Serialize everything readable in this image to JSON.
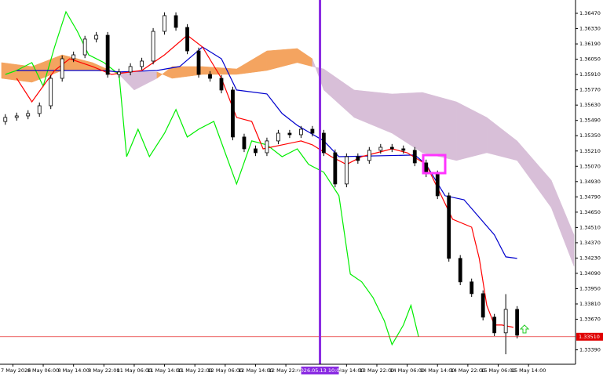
{
  "chart_data": {
    "type": "candlestick",
    "xlim": [
      -3.4,
      148.4
    ],
    "ylim": [
      1.33258,
      1.36592
    ],
    "yticks": [
      {
        "value": 1.3647,
        "label": "1.36470"
      },
      {
        "value": 1.3633,
        "label": "1.36330"
      },
      {
        "value": 1.3619,
        "label": "1.36190"
      },
      {
        "value": 1.3605,
        "label": "1.36050"
      },
      {
        "value": 1.3591,
        "label": "1.35910"
      },
      {
        "value": 1.3577,
        "label": "1.35770"
      },
      {
        "value": 1.3563,
        "label": "1.35630"
      },
      {
        "value": 1.3549,
        "label": "1.35490"
      },
      {
        "value": 1.3535,
        "label": "1.35350"
      },
      {
        "value": 1.3521,
        "label": "1.35210"
      },
      {
        "value": 1.3507,
        "label": "1.35070"
      },
      {
        "value": 1.3493,
        "label": "1.34930"
      },
      {
        "value": 1.3479,
        "label": "1.34790"
      },
      {
        "value": 1.3465,
        "label": "1.34650"
      },
      {
        "value": 1.3451,
        "label": "1.34510"
      },
      {
        "value": 1.3437,
        "label": "1.34370"
      },
      {
        "value": 1.3423,
        "label": "1.34230"
      },
      {
        "value": 1.3409,
        "label": "1.34090"
      },
      {
        "value": 1.3395,
        "label": "1.33950"
      },
      {
        "value": 1.3381,
        "label": "1.33810"
      },
      {
        "value": 1.3367,
        "label": "1.33670"
      },
      {
        "value": 1.3339,
        "label": "1.33390"
      }
    ],
    "xticks": [
      {
        "value": 0,
        "label": "7 May 2026"
      },
      {
        "value": 8,
        "label": "8 May 06:00"
      },
      {
        "value": 16,
        "label": "8 May 14:00"
      },
      {
        "value": 24,
        "label": "8 May 22:00"
      },
      {
        "value": 32,
        "label": "11 May 06:00"
      },
      {
        "value": 40,
        "label": "11 May 14:00"
      },
      {
        "value": 48,
        "label": "11 May 22:00"
      },
      {
        "value": 56,
        "label": "12 May 06:00"
      },
      {
        "value": 64,
        "label": "12 May 14:00"
      },
      {
        "value": 72,
        "label": "12 May 22:00"
      },
      {
        "value": 88,
        "label": "13 May 14:00"
      },
      {
        "value": 96,
        "label": "13 May 22:00"
      },
      {
        "value": 104,
        "label": "14 May 06:00"
      },
      {
        "value": 112,
        "label": "14 May 14:00"
      },
      {
        "value": 120,
        "label": "14 May 22:00"
      },
      {
        "value": 128,
        "label": "15 May 06:00"
      },
      {
        "value": 136,
        "label": "15 May 14:00"
      }
    ],
    "cursor": {
      "x": 81,
      "label": "2026.05.13 10:00",
      "color": "#8a2be2"
    },
    "price_line": {
      "value": 1.3351,
      "label": "1.33510",
      "color": "#e00000"
    },
    "candles": {
      "up_color": "#ffffff",
      "down_color": "#000000",
      "x": [
        -2,
        1,
        4,
        7,
        10,
        13,
        16,
        19,
        22,
        25,
        28,
        31,
        34,
        37,
        40,
        43,
        46,
        49,
        52,
        55,
        58,
        61,
        64,
        67,
        70,
        73,
        76,
        79,
        82,
        85,
        88,
        91,
        94,
        97,
        100,
        103,
        106,
        109,
        112,
        115,
        118,
        121,
        124,
        127,
        130,
        133
      ],
      "open": [
        1.3548,
        1.35517,
        1.35531,
        1.35553,
        1.35624,
        1.35875,
        1.36054,
        1.3609,
        1.36234,
        1.36269,
        1.35911,
        1.35933,
        1.35983,
        1.36033,
        1.36305,
        1.36449,
        1.36341,
        1.36126,
        1.35911,
        1.35875,
        1.35768,
        1.35338,
        1.3523,
        1.35194,
        1.35302,
        1.35373,
        1.35359,
        1.35409,
        1.35373,
        1.35194,
        1.34908,
        1.35158,
        1.35123,
        1.35216,
        1.35244,
        1.3523,
        1.35216,
        1.35101,
        1.35001,
        1.348,
        1.34227,
        1.34012,
        1.33904,
        1.33689,
        1.33546,
        1.3376
      ],
      "high": [
        1.35547,
        1.35561,
        1.35583,
        1.35654,
        1.35905,
        1.36084,
        1.3612,
        1.36264,
        1.36299,
        1.36299,
        1.35963,
        1.36013,
        1.36063,
        1.36335,
        1.36479,
        1.36479,
        1.36371,
        1.36156,
        1.35941,
        1.35905,
        1.35798,
        1.35368,
        1.3526,
        1.35332,
        1.35403,
        1.35403,
        1.35439,
        1.35439,
        1.35403,
        1.35224,
        1.35188,
        1.35188,
        1.35246,
        1.35274,
        1.35274,
        1.3526,
        1.35246,
        1.35131,
        1.35031,
        1.3483,
        1.34257,
        1.34042,
        1.33934,
        1.33719,
        1.339,
        1.3379
      ],
      "low": [
        1.3545,
        1.35487,
        1.35501,
        1.35523,
        1.35594,
        1.35845,
        1.36024,
        1.3606,
        1.36204,
        1.35881,
        1.35881,
        1.35903,
        1.35953,
        1.36003,
        1.36275,
        1.36311,
        1.36096,
        1.35881,
        1.35845,
        1.35738,
        1.35308,
        1.352,
        1.35164,
        1.35164,
        1.35272,
        1.35329,
        1.35329,
        1.35343,
        1.35164,
        1.34878,
        1.34878,
        1.35093,
        1.35093,
        1.35186,
        1.352,
        1.35186,
        1.35071,
        1.34971,
        1.3477,
        1.34197,
        1.33982,
        1.33874,
        1.33659,
        1.33516,
        1.3335,
        1.33494
      ],
      "close": [
        1.35517,
        1.35531,
        1.35553,
        1.35624,
        1.35875,
        1.36054,
        1.3609,
        1.36234,
        1.36269,
        1.35911,
        1.35933,
        1.35983,
        1.36033,
        1.36305,
        1.36449,
        1.36341,
        1.36126,
        1.35911,
        1.35875,
        1.35768,
        1.35338,
        1.3523,
        1.35194,
        1.35302,
        1.35373,
        1.35359,
        1.35409,
        1.35373,
        1.35194,
        1.34908,
        1.35158,
        1.35123,
        1.35216,
        1.35244,
        1.3523,
        1.35216,
        1.35101,
        1.35001,
        1.348,
        1.34227,
        1.34012,
        1.33904,
        1.33689,
        1.33546,
        1.3376,
        1.33524
      ]
    },
    "cloud": {
      "up_color": "#f4a460",
      "down_color": "#d8bfd8",
      "x": [
        -3,
        5,
        13,
        21,
        28,
        32,
        38,
        42,
        50,
        59,
        67,
        75,
        79,
        82,
        90,
        100,
        108,
        117,
        125,
        133,
        142,
        148
      ],
      "span_a": [
        1.36019,
        1.35983,
        1.3609,
        1.36019,
        1.35911,
        1.35768,
        1.35875,
        1.35983,
        1.35983,
        1.35961,
        1.36126,
        1.36148,
        1.36054,
        1.35768,
        1.35517,
        1.35373,
        1.35194,
        1.35123,
        1.35194,
        1.35123,
        1.34692,
        1.34155
      ],
      "span_b": [
        1.35875,
        1.35839,
        1.35947,
        1.35947,
        1.35933,
        1.35933,
        1.35933,
        1.35875,
        1.35911,
        1.35911,
        1.35947,
        1.36019,
        1.35983,
        1.35961,
        1.35768,
        1.35732,
        1.35746,
        1.3566,
        1.35517,
        1.35302,
        1.34943,
        1.34442
      ]
    },
    "series": [
      {
        "color": "#00ee00",
        "x": [
          -2,
          1,
          5,
          8,
          11,
          14,
          17,
          20,
          24,
          28,
          30,
          33,
          36,
          40,
          43,
          46,
          49,
          53,
          56,
          59,
          63,
          67,
          71,
          75,
          78,
          82,
          86,
          89,
          92,
          95,
          98,
          100,
          103,
          105,
          107
        ],
        "values": [
          1.35911,
          1.35947,
          1.36019,
          1.35804,
          1.36162,
          1.36484,
          1.36305,
          1.3609,
          1.36019,
          1.35911,
          1.35158,
          1.35409,
          1.35158,
          1.35373,
          1.35589,
          1.35338,
          1.35409,
          1.35481,
          1.35194,
          1.34908,
          1.35302,
          1.35266,
          1.35158,
          1.3523,
          1.35087,
          1.35015,
          1.348,
          1.34083,
          1.34012,
          1.33868,
          1.33653,
          1.33438,
          1.33617,
          1.33797,
          1.3351
        ]
      },
      {
        "color": "#0000cd",
        "x": [
          1,
          24,
          28,
          38,
          44,
          50,
          55,
          59,
          67,
          71,
          75,
          82,
          86,
          106,
          109,
          114,
          119,
          127,
          130,
          133
        ],
        "values": [
          1.35947,
          1.35947,
          1.35933,
          1.35947,
          1.35983,
          1.36162,
          1.36054,
          1.35768,
          1.35732,
          1.35553,
          1.35445,
          1.35302,
          1.35158,
          1.35173,
          1.35087,
          1.348,
          1.34764,
          1.34442,
          1.34241,
          1.34227
        ]
      },
      {
        "color": "#ff0000",
        "x": [
          1,
          5,
          8,
          11,
          15,
          21,
          26,
          34,
          40,
          46,
          50,
          55,
          59,
          63,
          66,
          71,
          76,
          79,
          84,
          88,
          92,
          96,
          100,
          104,
          109,
          113,
          116,
          121,
          123,
          125,
          127,
          129,
          132
        ],
        "values": [
          1.35875,
          1.3566,
          1.35804,
          1.35947,
          1.36054,
          1.35983,
          1.35911,
          1.35947,
          1.3609,
          1.36269,
          1.36162,
          1.35875,
          1.35517,
          1.35481,
          1.3523,
          1.35266,
          1.35302,
          1.35266,
          1.35158,
          1.35087,
          1.35158,
          1.35194,
          1.3523,
          1.35194,
          1.35087,
          1.348,
          1.34585,
          1.34513,
          1.34227,
          1.33797,
          1.33617,
          1.33617,
          1.33596
        ]
      }
    ]
  }
}
